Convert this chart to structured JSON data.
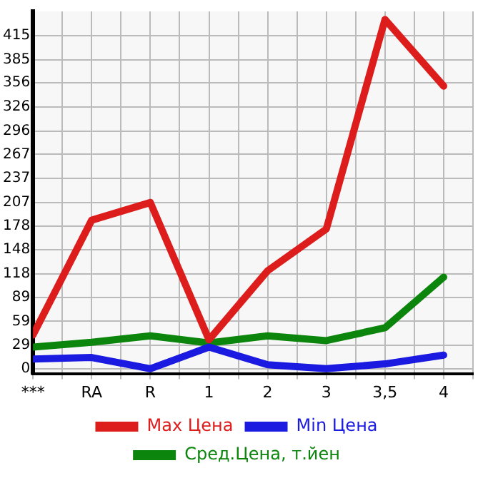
{
  "chart_data": {
    "type": "line",
    "categories": [
      "***",
      "RA",
      "R",
      "1",
      "2",
      "3",
      "3,5",
      "4"
    ],
    "series": [
      {
        "name": "Max Цена",
        "color": "#dd1c1c",
        "values": [
          42,
          185,
          207,
          36,
          122,
          174,
          435,
          352
        ]
      },
      {
        "name": "Min Цена",
        "color": "#1a1ae0",
        "values": [
          12,
          14,
          0,
          27,
          5,
          0,
          6,
          17
        ]
      },
      {
        "name": "Сред.Цена, т.йен",
        "color": "#0b850b",
        "values": [
          27,
          33,
          41,
          32,
          41,
          35,
          51,
          114
        ]
      }
    ],
    "ylim": [
      -6,
      445
    ],
    "yticks": [
      0,
      29,
      59,
      89,
      118,
      148,
      178,
      207,
      237,
      267,
      296,
      326,
      356,
      385,
      415
    ],
    "grid": true,
    "legend": "bottom",
    "marker": "none",
    "line_style": "solid"
  }
}
